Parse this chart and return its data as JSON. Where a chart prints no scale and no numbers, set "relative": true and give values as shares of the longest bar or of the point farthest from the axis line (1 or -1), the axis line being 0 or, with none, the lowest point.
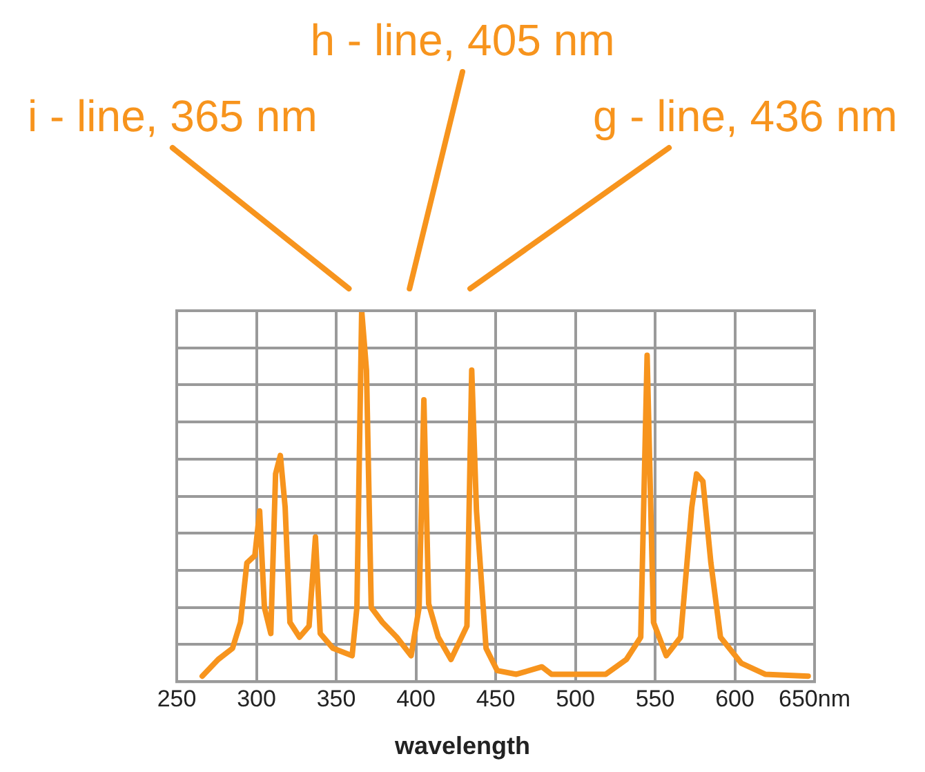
{
  "chart_data": {
    "type": "line",
    "relative": true,
    "xlabel": "wavelength",
    "xlim": [
      250,
      650
    ],
    "xticks": [
      250,
      300,
      350,
      400,
      450,
      500,
      550,
      600,
      {
        "value": 650,
        "label": "650nm"
      }
    ],
    "grid": true,
    "legend": false,
    "marker": "none",
    "annotations": [
      "i - line, 365 nm",
      "h - line, 405 nm",
      "g - line, 436 nm"
    ],
    "series": [
      {
        "color": "#f7941d",
        "x": [
          266,
          276,
          285,
          290,
          294,
          299,
          302,
          305,
          309,
          312,
          315,
          318,
          321,
          327,
          333,
          337,
          340,
          348,
          360,
          363,
          366,
          369,
          372,
          379,
          388,
          397,
          402,
          405,
          408,
          414,
          422,
          432,
          435,
          438,
          444,
          451,
          463,
          479,
          485,
          519,
          532,
          541,
          545,
          549,
          557,
          566,
          573,
          576,
          580,
          585,
          591,
          604,
          619,
          646
        ],
        "values": [
          0.015,
          0.06,
          0.09,
          0.16,
          0.32,
          0.34,
          0.46,
          0.2,
          0.13,
          0.56,
          0.61,
          0.47,
          0.16,
          0.12,
          0.15,
          0.39,
          0.13,
          0.09,
          0.07,
          0.2,
          1,
          0.84,
          0.2,
          0.16,
          0.12,
          0.07,
          0.2,
          0.76,
          0.21,
          0.12,
          0.06,
          0.15,
          0.84,
          0.46,
          0.09,
          0.03,
          0.02,
          0.04,
          0.02,
          0.02,
          0.06,
          0.12,
          0.88,
          0.16,
          0.07,
          0.12,
          0.47,
          0.56,
          0.54,
          0.32,
          0.12,
          0.05,
          0.02,
          0.015
        ]
      }
    ]
  }
}
